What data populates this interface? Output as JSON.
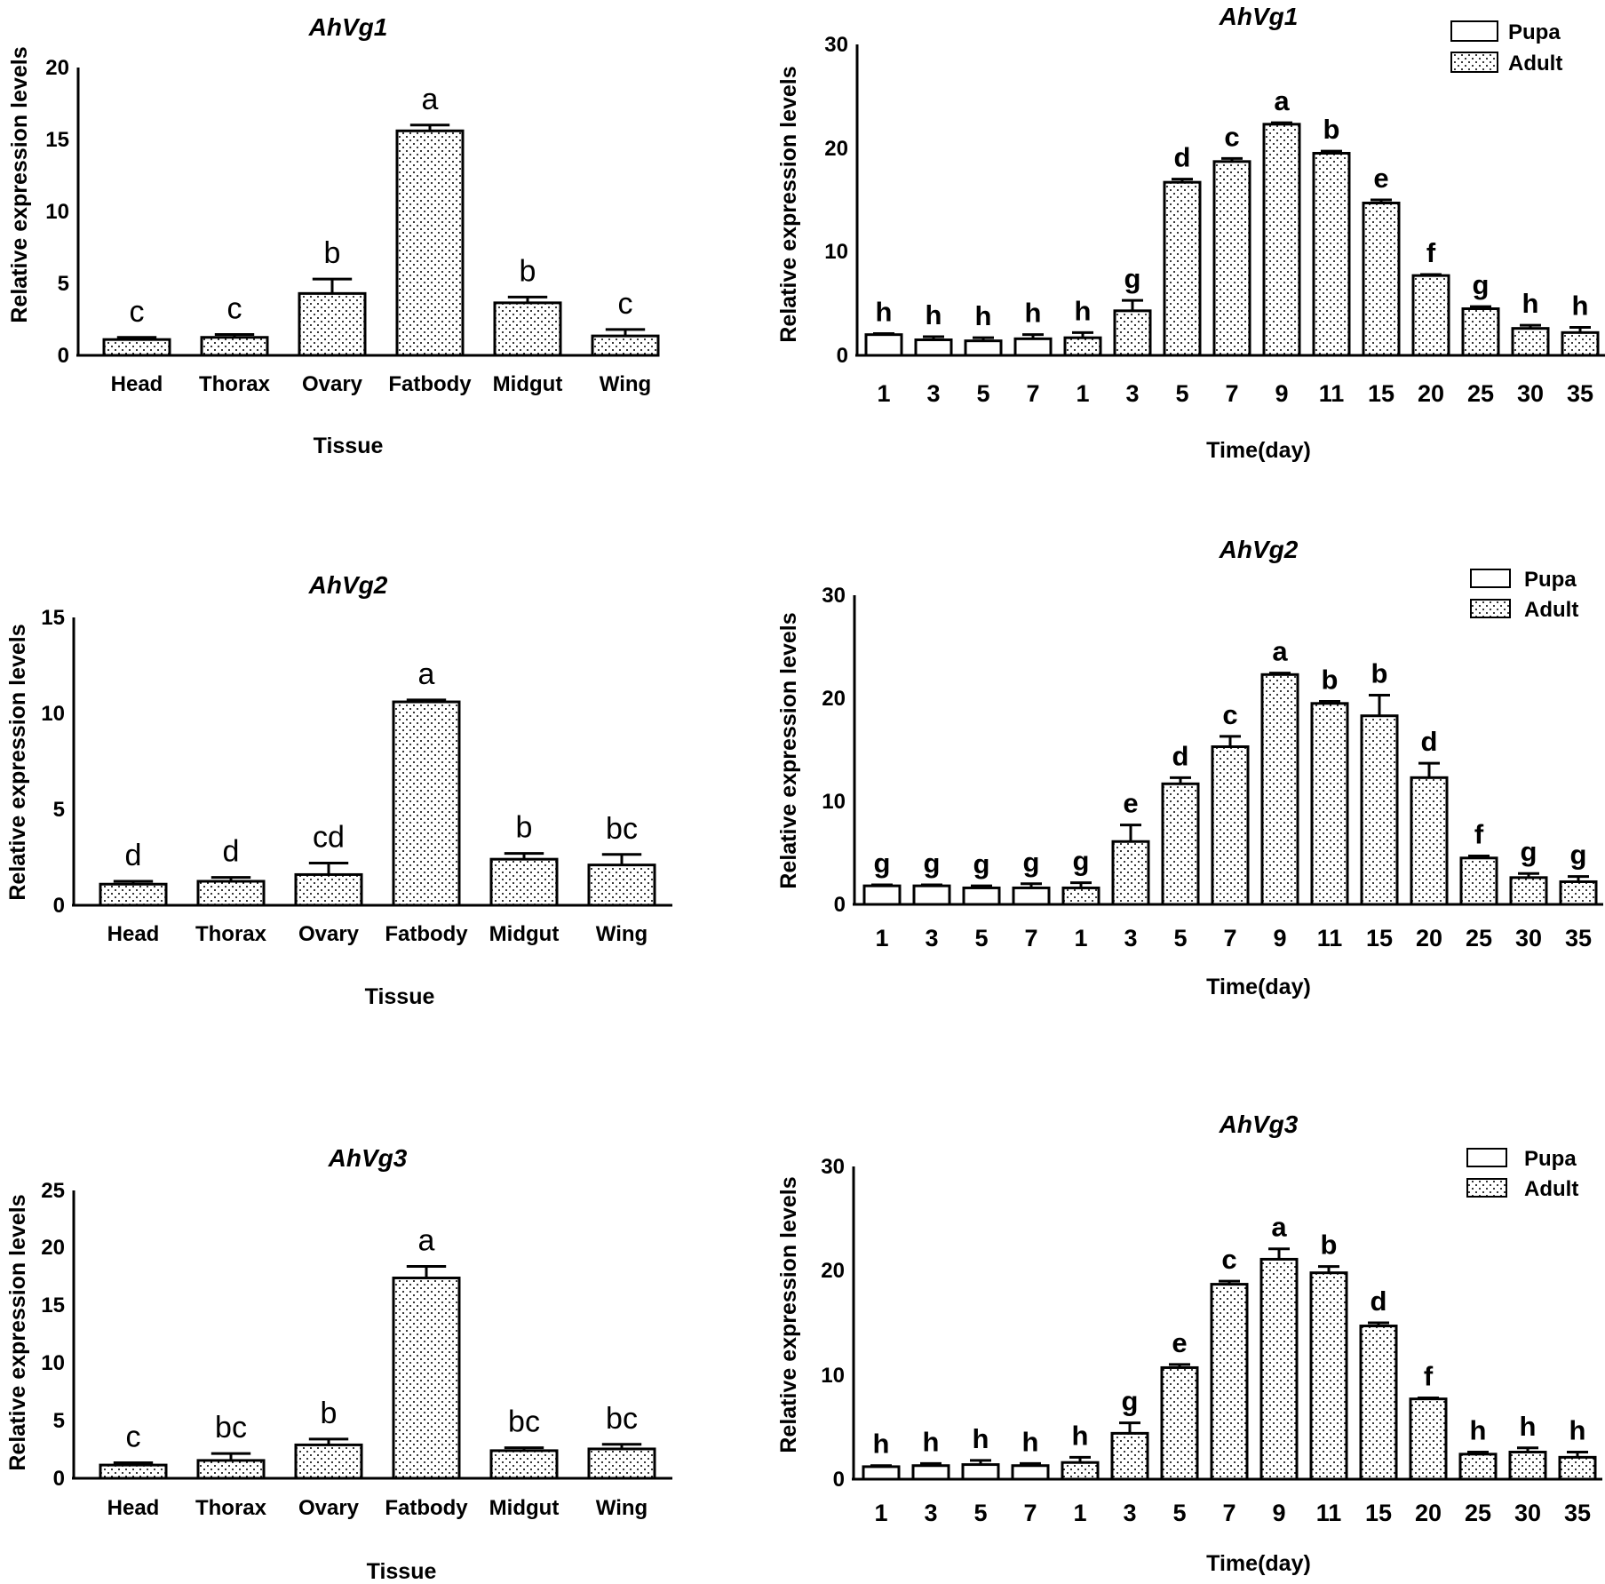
{
  "chart_data": [
    {
      "type": "bar",
      "title": "AhVg1",
      "xlabel": "Tissue",
      "ylabel": "Relative expression levels",
      "ylim": [
        0,
        20
      ],
      "yticks": [
        "0",
        "5",
        "10",
        "15",
        "20"
      ],
      "categories": [
        "Head",
        "Thorax",
        "Ovary",
        "Fatbody",
        "Midgut",
        "Wing"
      ],
      "values": [
        1.1,
        1.25,
        4.3,
        15.6,
        3.65,
        1.35
      ],
      "errors": [
        0.15,
        0.2,
        1.0,
        0.4,
        0.4,
        0.45
      ],
      "letters": [
        "c",
        "c",
        "b",
        "a",
        "b",
        "c"
      ]
    },
    {
      "type": "bar",
      "title": "AhVg1",
      "xlabel": "Time(day)",
      "ylabel": "Relative expression levels",
      "ylim": [
        0,
        30
      ],
      "yticks": [
        "0",
        "10",
        "20",
        "30"
      ],
      "legend": [
        "Pupa",
        "Adult"
      ],
      "categories": [
        "1",
        "3",
        "5",
        "7",
        "1",
        "3",
        "5",
        "7",
        "9",
        "11",
        "15",
        "20",
        "25",
        "30",
        "35"
      ],
      "stage": [
        "Pupa",
        "Pupa",
        "Pupa",
        "Pupa",
        "Adult",
        "Adult",
        "Adult",
        "Adult",
        "Adult",
        "Adult",
        "Adult",
        "Adult",
        "Adult",
        "Adult",
        "Adult"
      ],
      "values": [
        2.0,
        1.5,
        1.4,
        1.6,
        1.7,
        4.3,
        16.7,
        18.7,
        22.3,
        19.5,
        14.7,
        7.7,
        4.5,
        2.6,
        2.2
      ],
      "errors": [
        0.1,
        0.3,
        0.3,
        0.4,
        0.5,
        1.0,
        0.3,
        0.3,
        0.15,
        0.2,
        0.3,
        0.1,
        0.2,
        0.3,
        0.5
      ],
      "letters": [
        "h",
        "h",
        "h",
        "h",
        "h",
        "g",
        "d",
        "c",
        "a",
        "b",
        "e",
        "f",
        "g",
        "h",
        "h"
      ]
    },
    {
      "type": "bar",
      "title": "AhVg2",
      "xlabel": "Tissue",
      "ylabel": "Relative expression levels",
      "ylim": [
        0,
        15
      ],
      "yticks": [
        "0",
        "5",
        "10",
        "15"
      ],
      "categories": [
        "Head",
        "Thorax",
        "Ovary",
        "Fatbody",
        "Midgut",
        "Wing"
      ],
      "values": [
        1.1,
        1.25,
        1.6,
        10.6,
        2.4,
        2.1
      ],
      "errors": [
        0.15,
        0.2,
        0.6,
        0.1,
        0.3,
        0.55
      ],
      "letters": [
        "d",
        "d",
        "cd",
        "a",
        "b",
        "bc"
      ]
    },
    {
      "type": "bar",
      "title": "AhVg2",
      "xlabel": "Time(day)",
      "ylabel": "Relative expression levels",
      "ylim": [
        0,
        30
      ],
      "yticks": [
        "0",
        "10",
        "20",
        "30"
      ],
      "legend": [
        "Pupa",
        "Adult"
      ],
      "categories": [
        "1",
        "3",
        "5",
        "7",
        "1",
        "3",
        "5",
        "7",
        "9",
        "11",
        "15",
        "20",
        "25",
        "30",
        "35"
      ],
      "stage": [
        "Pupa",
        "Pupa",
        "Pupa",
        "Pupa",
        "Adult",
        "Adult",
        "Adult",
        "Adult",
        "Adult",
        "Adult",
        "Adult",
        "Adult",
        "Adult",
        "Adult",
        "Adult"
      ],
      "values": [
        1.8,
        1.8,
        1.6,
        1.6,
        1.6,
        6.1,
        11.7,
        15.3,
        22.3,
        19.5,
        18.3,
        12.3,
        4.5,
        2.6,
        2.2
      ],
      "errors": [
        0.1,
        0.1,
        0.2,
        0.4,
        0.5,
        1.6,
        0.6,
        1.0,
        0.15,
        0.2,
        2.0,
        1.4,
        0.2,
        0.4,
        0.5
      ],
      "letters": [
        "g",
        "g",
        "g",
        "g",
        "g",
        "e",
        "d",
        "c",
        "a",
        "b",
        "b",
        "d",
        "f",
        "g",
        "g"
      ]
    },
    {
      "type": "bar",
      "title": "AhVg3",
      "xlabel": "Tissue",
      "ylabel": "Relative expression levels",
      "ylim": [
        0,
        25
      ],
      "yticks": [
        "0",
        "5",
        "10",
        "15",
        "20",
        "25"
      ],
      "categories": [
        "Head",
        "Thorax",
        "Ovary",
        "Fatbody",
        "Midgut",
        "Wing"
      ],
      "values": [
        1.15,
        1.55,
        2.9,
        17.4,
        2.4,
        2.55
      ],
      "errors": [
        0.2,
        0.6,
        0.5,
        1.0,
        0.25,
        0.4
      ],
      "letters": [
        "c",
        "bc",
        "b",
        "a",
        "bc",
        "bc"
      ]
    },
    {
      "type": "bar",
      "title": "AhVg3",
      "xlabel": "Time(day)",
      "ylabel": "Relative expression levels",
      "ylim": [
        0,
        30
      ],
      "yticks": [
        "0",
        "10",
        "20",
        "30"
      ],
      "legend": [
        "Pupa",
        "Adult"
      ],
      "categories": [
        "1",
        "3",
        "5",
        "7",
        "1",
        "3",
        "5",
        "7",
        "9",
        "11",
        "15",
        "20",
        "25",
        "30",
        "35"
      ],
      "stage": [
        "Pupa",
        "Pupa",
        "Pupa",
        "Pupa",
        "Adult",
        "Adult",
        "Adult",
        "Adult",
        "Adult",
        "Adult",
        "Adult",
        "Adult",
        "Adult",
        "Adult",
        "Adult"
      ],
      "values": [
        1.2,
        1.3,
        1.4,
        1.3,
        1.6,
        4.4,
        10.7,
        18.7,
        21.1,
        19.8,
        14.7,
        7.7,
        2.4,
        2.6,
        2.1
      ],
      "errors": [
        0.1,
        0.2,
        0.4,
        0.2,
        0.5,
        1.0,
        0.3,
        0.3,
        1.0,
        0.6,
        0.3,
        0.1,
        0.2,
        0.4,
        0.5
      ],
      "letters": [
        "h",
        "h",
        "h",
        "h",
        "h",
        "g",
        "e",
        "c",
        "a",
        "b",
        "d",
        "f",
        "h",
        "h",
        "h"
      ]
    }
  ]
}
